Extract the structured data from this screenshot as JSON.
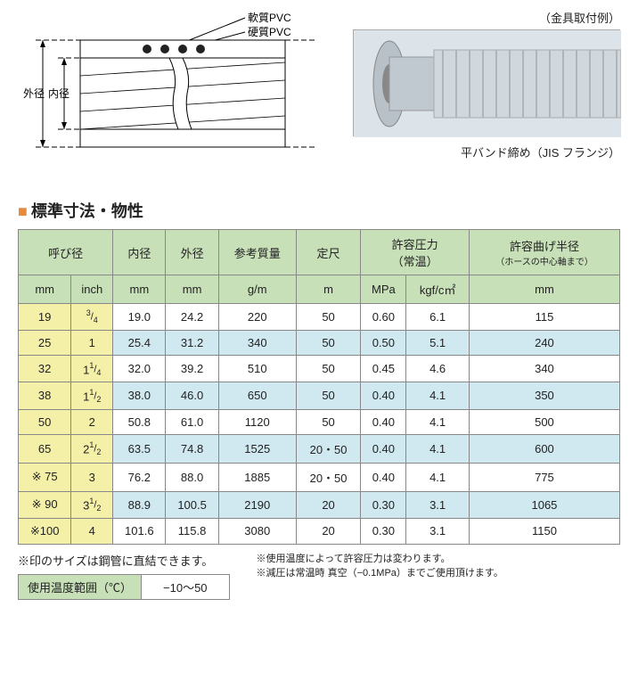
{
  "diagram": {
    "label_soft": "軟質PVC",
    "label_hard": "硬質PVC",
    "label_outer": "外径",
    "label_inner": "内径"
  },
  "photo": {
    "caption_top": "（金具取付例）",
    "caption_bottom": "平バンド締め（JIS フランジ）"
  },
  "section_title": "標準寸法・物性",
  "table": {
    "headers": {
      "nominal": "呼び径",
      "inner": "内径",
      "outer": "外径",
      "mass": "参考質量",
      "length": "定尺",
      "pressure": "許容圧力",
      "pressure_note": "（常温）",
      "bend": "許容曲げ半径",
      "bend_note": "（ホースの中心軸まで）",
      "unit_mm": "mm",
      "unit_inch": "inch",
      "unit_gm": "g/m",
      "unit_m": "m",
      "unit_mpa": "MPa",
      "unit_kgf": "kgf/c㎡"
    },
    "rows": [
      {
        "mm": "19",
        "inch_w": "",
        "inch_n": "3",
        "inch_d": "4",
        "inner": "19.0",
        "outer": "24.2",
        "mass": "220",
        "len": "50",
        "mpa": "0.60",
        "kgf": "6.1",
        "bend": "115"
      },
      {
        "mm": "25",
        "inch_w": "1",
        "inch_n": "",
        "inch_d": "",
        "inner": "25.4",
        "outer": "31.2",
        "mass": "340",
        "len": "50",
        "mpa": "0.50",
        "kgf": "5.1",
        "bend": "240"
      },
      {
        "mm": "32",
        "inch_w": "1",
        "inch_n": "1",
        "inch_d": "4",
        "inner": "32.0",
        "outer": "39.2",
        "mass": "510",
        "len": "50",
        "mpa": "0.45",
        "kgf": "4.6",
        "bend": "340"
      },
      {
        "mm": "38",
        "inch_w": "1",
        "inch_n": "1",
        "inch_d": "2",
        "inner": "38.0",
        "outer": "46.0",
        "mass": "650",
        "len": "50",
        "mpa": "0.40",
        "kgf": "4.1",
        "bend": "350"
      },
      {
        "mm": "50",
        "inch_w": "2",
        "inch_n": "",
        "inch_d": "",
        "inner": "50.8",
        "outer": "61.0",
        "mass": "1120",
        "len": "50",
        "mpa": "0.40",
        "kgf": "4.1",
        "bend": "500"
      },
      {
        "mm": "65",
        "inch_w": "2",
        "inch_n": "1",
        "inch_d": "2",
        "inner": "63.5",
        "outer": "74.8",
        "mass": "1525",
        "len": "20・50",
        "mpa": "0.40",
        "kgf": "4.1",
        "bend": "600"
      },
      {
        "mm": "※ 75",
        "inch_w": "3",
        "inch_n": "",
        "inch_d": "",
        "inner": "76.2",
        "outer": "88.0",
        "mass": "1885",
        "len": "20・50",
        "mpa": "0.40",
        "kgf": "4.1",
        "bend": "775"
      },
      {
        "mm": "※ 90",
        "inch_w": "3",
        "inch_n": "1",
        "inch_d": "2",
        "inner": "88.9",
        "outer": "100.5",
        "mass": "2190",
        "len": "20",
        "mpa": "0.30",
        "kgf": "3.1",
        "bend": "1065"
      },
      {
        "mm": "※100",
        "inch_w": "4",
        "inch_n": "",
        "inch_d": "",
        "inner": "101.6",
        "outer": "115.8",
        "mass": "3080",
        "len": "20",
        "mpa": "0.30",
        "kgf": "3.1",
        "bend": "1150"
      }
    ]
  },
  "footnotes": {
    "note1": "※印のサイズは鋼管に直結できます。",
    "temp_label": "使用温度範囲（℃）",
    "temp_value": "−10〜50",
    "right1": "※使用温度によって許容圧力は変わります。",
    "right2": "※減圧は常温時 真空（−0.1MPa）までご使用頂けます。"
  }
}
